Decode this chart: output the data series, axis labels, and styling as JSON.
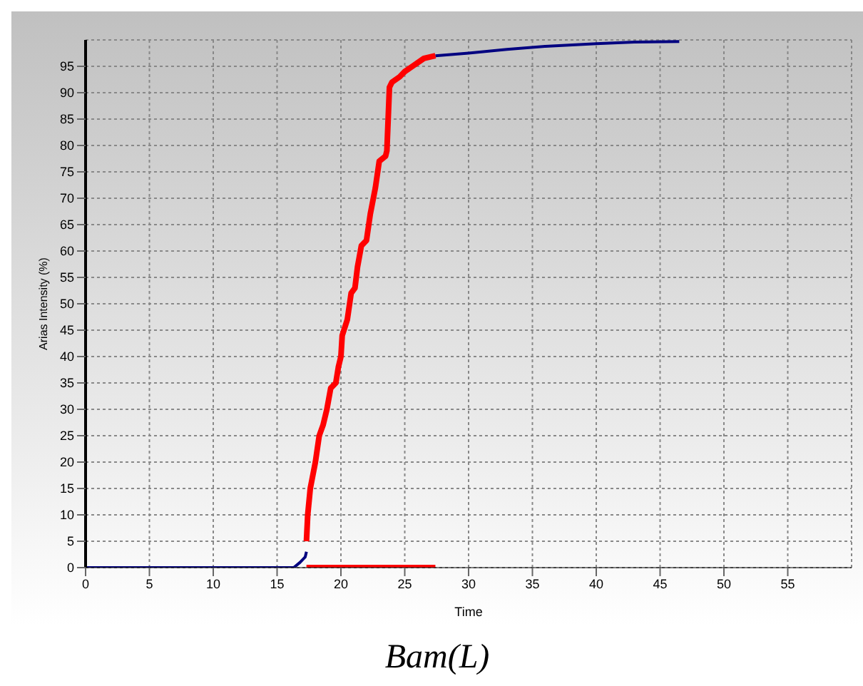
{
  "chart_data": {
    "type": "line",
    "title": "Bam(L)",
    "xlabel": "Time",
    "ylabel": "Arias Intensity (%)",
    "series": [
      {
        "color": "#000080",
        "x": [
          0,
          16.3,
          16.8,
          17.2,
          17.3
        ],
        "values": [
          0,
          0,
          1,
          2,
          3
        ]
      },
      {
        "color": "#000080",
        "x": [
          27.4,
          30,
          33,
          36,
          40,
          43,
          46.5
        ],
        "values": [
          97,
          97.5,
          98.2,
          98.8,
          99.3,
          99.6,
          99.7
        ]
      },
      {
        "color": "#ff0000",
        "x": [
          17.3,
          17.4,
          17.6,
          18,
          18.3,
          18.6,
          18.9,
          19.2,
          19.6,
          19.8,
          20,
          20.1,
          20.5,
          20.8,
          21.1,
          21.3,
          21.6,
          22,
          22.3,
          22.7,
          23,
          23.5,
          23.6,
          23.7,
          23.8,
          24,
          24.6,
          25,
          25.6,
          26.5,
          27.4
        ],
        "values": [
          5,
          10,
          15,
          20,
          25,
          27,
          30,
          34,
          35,
          38,
          40,
          44,
          47,
          52,
          53,
          57,
          61,
          62,
          67,
          72,
          77,
          78,
          79,
          85,
          91,
          92,
          93,
          94,
          95,
          96.5,
          97
        ]
      },
      {
        "color": "#ff0000",
        "x": [
          17.3,
          27.4
        ],
        "values": [
          0,
          0
        ]
      }
    ],
    "xlim": [
      0,
      60
    ],
    "xticks": [
      0,
      5,
      10,
      15,
      20,
      25,
      30,
      35,
      40,
      45,
      50,
      55
    ],
    "ylim": [
      0,
      100
    ],
    "yticks": [
      0,
      5,
      10,
      15,
      20,
      25,
      30,
      35,
      40,
      45,
      50,
      55,
      60,
      65,
      70,
      75,
      80,
      85,
      90,
      95
    ],
    "grid": true,
    "line_style": "solid",
    "marker": "none"
  }
}
